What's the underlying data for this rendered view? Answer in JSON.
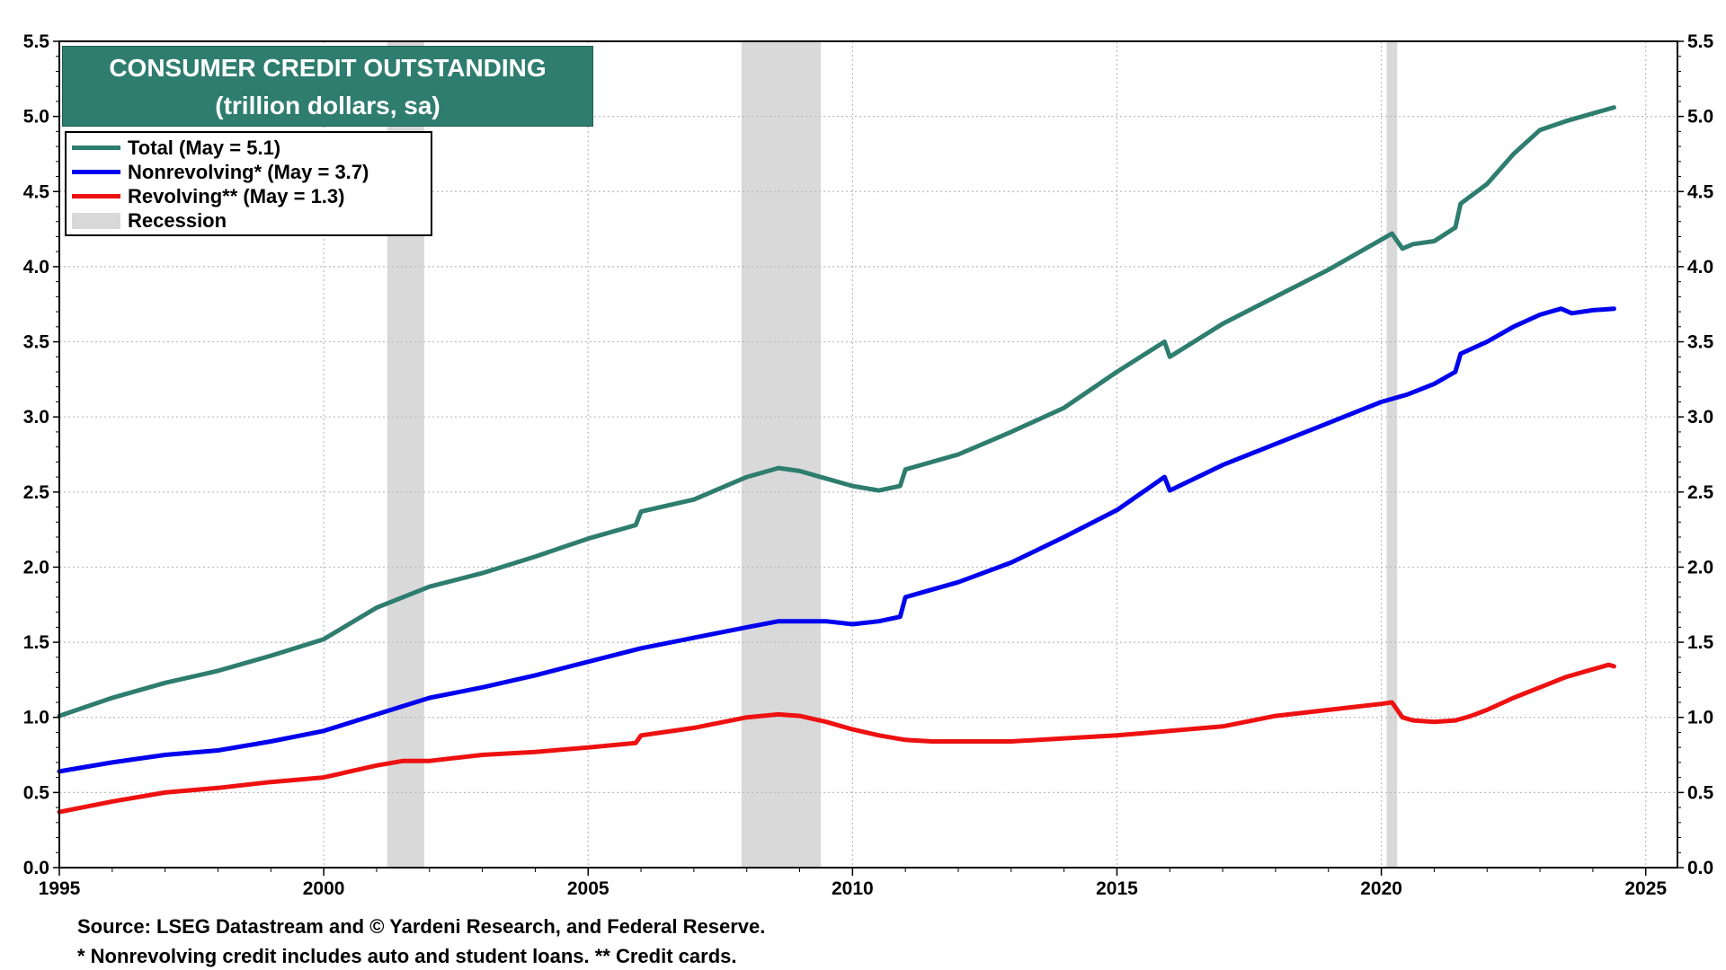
{
  "chart_data": {
    "type": "line",
    "title": "CONSUMER CREDIT OUTSTANDING",
    "subtitle": "(trillion dollars, sa)",
    "xlim": [
      1995,
      2025.6
    ],
    "ylim": [
      0,
      5.5
    ],
    "x_ticks": [
      1995,
      2000,
      2005,
      2010,
      2015,
      2020,
      2025
    ],
    "y_ticks": [
      "0.0",
      "0.5",
      "1.0",
      "1.5",
      "2.0",
      "2.5",
      "3.0",
      "3.5",
      "4.0",
      "4.5",
      "5.0",
      "5.5"
    ],
    "grid": true,
    "legend_position": "top-left",
    "recessions": [
      {
        "start": 2001.2,
        "end": 2001.9
      },
      {
        "start": 2007.9,
        "end": 2009.4
      },
      {
        "start": 2020.1,
        "end": 2020.3
      }
    ],
    "recession_label": "Recession",
    "recession_color": "#d9d9d9",
    "series": [
      {
        "name": "Total",
        "legend_label": "Total  (May = 5.1)",
        "color": "#2e7d6f",
        "x": [
          1995.0,
          1996.0,
          1997.0,
          1998.0,
          1999.0,
          2000.0,
          2001.0,
          2002.0,
          2003.0,
          2004.0,
          2005.0,
          2005.9,
          2006.0,
          2007.0,
          2008.0,
          2008.6,
          2009.0,
          2009.5,
          2010.0,
          2010.5,
          2010.9,
          2011.0,
          2012.0,
          2013.0,
          2014.0,
          2015.0,
          2015.9,
          2016.0,
          2017.0,
          2018.0,
          2019.0,
          2020.0,
          2020.2,
          2020.4,
          2020.6,
          2021.0,
          2021.4,
          2021.5,
          2022.0,
          2022.5,
          2023.0,
          2023.5,
          2024.0,
          2024.4
        ],
        "y": [
          1.01,
          1.13,
          1.23,
          1.31,
          1.41,
          1.52,
          1.73,
          1.87,
          1.96,
          2.07,
          2.19,
          2.28,
          2.37,
          2.45,
          2.6,
          2.66,
          2.64,
          2.59,
          2.54,
          2.51,
          2.54,
          2.65,
          2.75,
          2.9,
          3.06,
          3.3,
          3.5,
          3.4,
          3.62,
          3.8,
          3.98,
          4.18,
          4.22,
          4.12,
          4.15,
          4.17,
          4.26,
          4.42,
          4.55,
          4.75,
          4.91,
          4.97,
          5.02,
          5.06
        ]
      },
      {
        "name": "Nonrevolving",
        "legend_label": "Nonrevolving* (May = 3.7)",
        "color": "#0000ee",
        "x": [
          1995.0,
          1996.0,
          1997.0,
          1998.0,
          1999.0,
          2000.0,
          2001.0,
          2002.0,
          2003.0,
          2004.0,
          2005.0,
          2006.0,
          2007.0,
          2008.0,
          2008.6,
          2009.0,
          2009.5,
          2010.0,
          2010.5,
          2010.9,
          2011.0,
          2012.0,
          2013.0,
          2014.0,
          2015.0,
          2015.9,
          2016.0,
          2017.0,
          2018.0,
          2019.0,
          2020.0,
          2020.5,
          2021.0,
          2021.4,
          2021.5,
          2022.0,
          2022.5,
          2023.0,
          2023.4,
          2023.6,
          2024.0,
          2024.4
        ],
        "y": [
          0.64,
          0.7,
          0.75,
          0.78,
          0.84,
          0.91,
          1.02,
          1.13,
          1.2,
          1.28,
          1.37,
          1.46,
          1.53,
          1.6,
          1.64,
          1.64,
          1.64,
          1.62,
          1.64,
          1.67,
          1.8,
          1.9,
          2.03,
          2.2,
          2.38,
          2.6,
          2.51,
          2.68,
          2.82,
          2.96,
          3.1,
          3.15,
          3.22,
          3.3,
          3.42,
          3.5,
          3.6,
          3.68,
          3.72,
          3.69,
          3.71,
          3.72
        ]
      },
      {
        "name": "Revolving",
        "legend_label": "Revolving** (May = 1.3)",
        "color": "#ee1111",
        "x": [
          1995.0,
          1996.0,
          1997.0,
          1998.0,
          1999.0,
          2000.0,
          2001.0,
          2001.5,
          2002.0,
          2003.0,
          2004.0,
          2005.0,
          2005.9,
          2006.0,
          2007.0,
          2008.0,
          2008.6,
          2009.0,
          2009.5,
          2010.0,
          2010.5,
          2011.0,
          2011.5,
          2012.0,
          2013.0,
          2014.0,
          2015.0,
          2016.0,
          2017.0,
          2018.0,
          2019.0,
          2020.0,
          2020.2,
          2020.4,
          2020.6,
          2021.0,
          2021.4,
          2021.7,
          2022.0,
          2022.5,
          2023.0,
          2023.5,
          2024.0,
          2024.3,
          2024.4
        ],
        "y": [
          0.37,
          0.44,
          0.5,
          0.53,
          0.57,
          0.6,
          0.68,
          0.71,
          0.71,
          0.75,
          0.77,
          0.8,
          0.83,
          0.88,
          0.93,
          1.0,
          1.02,
          1.01,
          0.97,
          0.92,
          0.88,
          0.85,
          0.84,
          0.84,
          0.84,
          0.86,
          0.88,
          0.91,
          0.94,
          1.01,
          1.05,
          1.09,
          1.1,
          1.0,
          0.98,
          0.97,
          0.98,
          1.01,
          1.05,
          1.13,
          1.2,
          1.27,
          1.32,
          1.35,
          1.34
        ]
      }
    ],
    "x_tick_labels": [
      "1995",
      "2000",
      "2005",
      "2010",
      "2015",
      "2020",
      "2025"
    ]
  },
  "footnotes": {
    "source": "Source: LSEG Datastream and © Yardeni Research, and Federal Reserve.",
    "note": "* Nonrevolving credit includes auto and student loans. ** Credit cards."
  }
}
